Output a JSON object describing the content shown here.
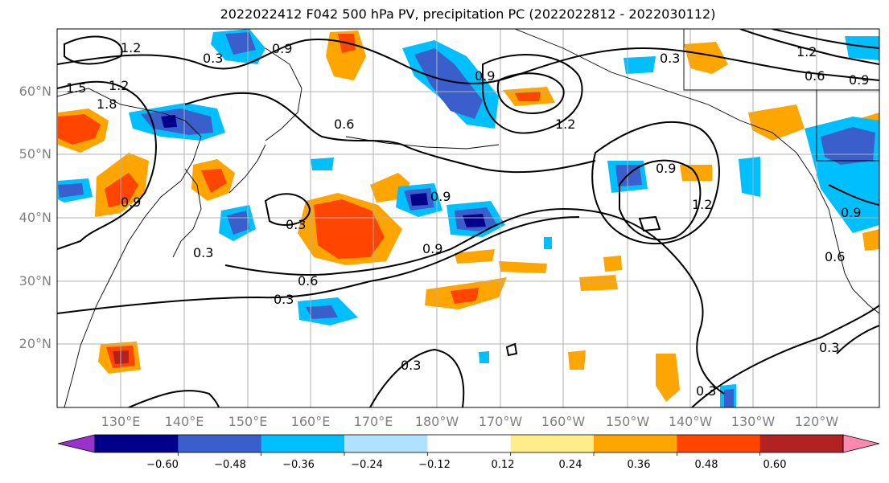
{
  "title": "2022022412 F042 500 hPa PV, precipitation PC (2022022812 - 2022030112)",
  "lat_labels": [
    "60°N",
    "50°N",
    "40°N",
    "30°N",
    "20°N"
  ],
  "lon_labels": [
    "130°E",
    "140°E",
    "150°E",
    "160°E",
    "170°E",
    "180°W",
    "170°W",
    "160°W",
    "150°W",
    "140°W",
    "130°W",
    "120°W"
  ],
  "colorbar": {
    "ticks": [
      "−0.60",
      "−0.48",
      "−0.36",
      "−0.24",
      "−0.12",
      "0.12",
      "0.24",
      "0.36",
      "0.48",
      "0.60"
    ],
    "colors": [
      "#9932cc",
      "#00008b",
      "#3a5fcd",
      "#00bfff",
      "#b0e2ff",
      "#ffffff",
      "#ffec8b",
      "#ffa500",
      "#ff4500",
      "#b22222",
      "#ff88b0"
    ]
  },
  "contour_labels": [
    "0.3",
    "0.6",
    "0.9",
    "1.2",
    "1.5",
    "1.8"
  ]
}
